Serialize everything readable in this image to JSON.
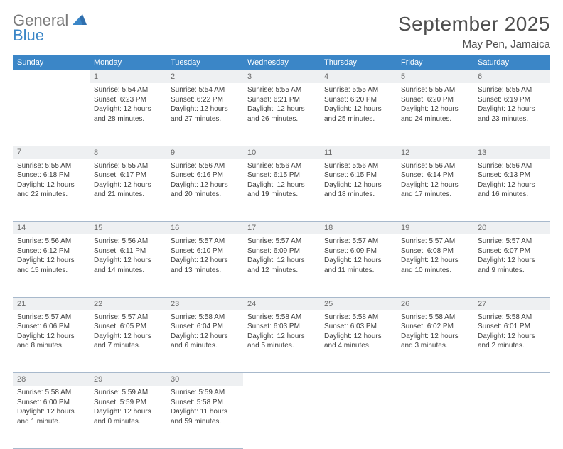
{
  "brand": {
    "line1": "General",
    "line2": "Blue"
  },
  "title": "September 2025",
  "location": "May Pen, Jamaica",
  "colors": {
    "header_bg": "#3b86c7",
    "header_text": "#ffffff",
    "daynum_bg": "#eef0f2",
    "daynum_text": "#6b6b6b",
    "body_text": "#3d3d3d",
    "grid_line": "#a8b9cc",
    "logo_gray": "#7a7a7a",
    "logo_blue": "#3b86c7",
    "page_bg": "#ffffff"
  },
  "typography": {
    "month_title_pt": 28,
    "location_pt": 15,
    "dayheader_pt": 11,
    "daynum_pt": 11,
    "cell_pt": 10
  },
  "day_headers": [
    "Sunday",
    "Monday",
    "Tuesday",
    "Wednesday",
    "Thursday",
    "Friday",
    "Saturday"
  ],
  "weeks": [
    [
      {
        "num": "",
        "sunrise": "",
        "sunset": "",
        "daylight": ""
      },
      {
        "num": "1",
        "sunrise": "Sunrise: 5:54 AM",
        "sunset": "Sunset: 6:23 PM",
        "daylight": "Daylight: 12 hours and 28 minutes."
      },
      {
        "num": "2",
        "sunrise": "Sunrise: 5:54 AM",
        "sunset": "Sunset: 6:22 PM",
        "daylight": "Daylight: 12 hours and 27 minutes."
      },
      {
        "num": "3",
        "sunrise": "Sunrise: 5:55 AM",
        "sunset": "Sunset: 6:21 PM",
        "daylight": "Daylight: 12 hours and 26 minutes."
      },
      {
        "num": "4",
        "sunrise": "Sunrise: 5:55 AM",
        "sunset": "Sunset: 6:20 PM",
        "daylight": "Daylight: 12 hours and 25 minutes."
      },
      {
        "num": "5",
        "sunrise": "Sunrise: 5:55 AM",
        "sunset": "Sunset: 6:20 PM",
        "daylight": "Daylight: 12 hours and 24 minutes."
      },
      {
        "num": "6",
        "sunrise": "Sunrise: 5:55 AM",
        "sunset": "Sunset: 6:19 PM",
        "daylight": "Daylight: 12 hours and 23 minutes."
      }
    ],
    [
      {
        "num": "7",
        "sunrise": "Sunrise: 5:55 AM",
        "sunset": "Sunset: 6:18 PM",
        "daylight": "Daylight: 12 hours and 22 minutes."
      },
      {
        "num": "8",
        "sunrise": "Sunrise: 5:55 AM",
        "sunset": "Sunset: 6:17 PM",
        "daylight": "Daylight: 12 hours and 21 minutes."
      },
      {
        "num": "9",
        "sunrise": "Sunrise: 5:56 AM",
        "sunset": "Sunset: 6:16 PM",
        "daylight": "Daylight: 12 hours and 20 minutes."
      },
      {
        "num": "10",
        "sunrise": "Sunrise: 5:56 AM",
        "sunset": "Sunset: 6:15 PM",
        "daylight": "Daylight: 12 hours and 19 minutes."
      },
      {
        "num": "11",
        "sunrise": "Sunrise: 5:56 AM",
        "sunset": "Sunset: 6:15 PM",
        "daylight": "Daylight: 12 hours and 18 minutes."
      },
      {
        "num": "12",
        "sunrise": "Sunrise: 5:56 AM",
        "sunset": "Sunset: 6:14 PM",
        "daylight": "Daylight: 12 hours and 17 minutes."
      },
      {
        "num": "13",
        "sunrise": "Sunrise: 5:56 AM",
        "sunset": "Sunset: 6:13 PM",
        "daylight": "Daylight: 12 hours and 16 minutes."
      }
    ],
    [
      {
        "num": "14",
        "sunrise": "Sunrise: 5:56 AM",
        "sunset": "Sunset: 6:12 PM",
        "daylight": "Daylight: 12 hours and 15 minutes."
      },
      {
        "num": "15",
        "sunrise": "Sunrise: 5:56 AM",
        "sunset": "Sunset: 6:11 PM",
        "daylight": "Daylight: 12 hours and 14 minutes."
      },
      {
        "num": "16",
        "sunrise": "Sunrise: 5:57 AM",
        "sunset": "Sunset: 6:10 PM",
        "daylight": "Daylight: 12 hours and 13 minutes."
      },
      {
        "num": "17",
        "sunrise": "Sunrise: 5:57 AM",
        "sunset": "Sunset: 6:09 PM",
        "daylight": "Daylight: 12 hours and 12 minutes."
      },
      {
        "num": "18",
        "sunrise": "Sunrise: 5:57 AM",
        "sunset": "Sunset: 6:09 PM",
        "daylight": "Daylight: 12 hours and 11 minutes."
      },
      {
        "num": "19",
        "sunrise": "Sunrise: 5:57 AM",
        "sunset": "Sunset: 6:08 PM",
        "daylight": "Daylight: 12 hours and 10 minutes."
      },
      {
        "num": "20",
        "sunrise": "Sunrise: 5:57 AM",
        "sunset": "Sunset: 6:07 PM",
        "daylight": "Daylight: 12 hours and 9 minutes."
      }
    ],
    [
      {
        "num": "21",
        "sunrise": "Sunrise: 5:57 AM",
        "sunset": "Sunset: 6:06 PM",
        "daylight": "Daylight: 12 hours and 8 minutes."
      },
      {
        "num": "22",
        "sunrise": "Sunrise: 5:57 AM",
        "sunset": "Sunset: 6:05 PM",
        "daylight": "Daylight: 12 hours and 7 minutes."
      },
      {
        "num": "23",
        "sunrise": "Sunrise: 5:58 AM",
        "sunset": "Sunset: 6:04 PM",
        "daylight": "Daylight: 12 hours and 6 minutes."
      },
      {
        "num": "24",
        "sunrise": "Sunrise: 5:58 AM",
        "sunset": "Sunset: 6:03 PM",
        "daylight": "Daylight: 12 hours and 5 minutes."
      },
      {
        "num": "25",
        "sunrise": "Sunrise: 5:58 AM",
        "sunset": "Sunset: 6:03 PM",
        "daylight": "Daylight: 12 hours and 4 minutes."
      },
      {
        "num": "26",
        "sunrise": "Sunrise: 5:58 AM",
        "sunset": "Sunset: 6:02 PM",
        "daylight": "Daylight: 12 hours and 3 minutes."
      },
      {
        "num": "27",
        "sunrise": "Sunrise: 5:58 AM",
        "sunset": "Sunset: 6:01 PM",
        "daylight": "Daylight: 12 hours and 2 minutes."
      }
    ],
    [
      {
        "num": "28",
        "sunrise": "Sunrise: 5:58 AM",
        "sunset": "Sunset: 6:00 PM",
        "daylight": "Daylight: 12 hours and 1 minute."
      },
      {
        "num": "29",
        "sunrise": "Sunrise: 5:59 AM",
        "sunset": "Sunset: 5:59 PM",
        "daylight": "Daylight: 12 hours and 0 minutes."
      },
      {
        "num": "30",
        "sunrise": "Sunrise: 5:59 AM",
        "sunset": "Sunset: 5:58 PM",
        "daylight": "Daylight: 11 hours and 59 minutes."
      },
      {
        "num": "",
        "sunrise": "",
        "sunset": "",
        "daylight": ""
      },
      {
        "num": "",
        "sunrise": "",
        "sunset": "",
        "daylight": ""
      },
      {
        "num": "",
        "sunrise": "",
        "sunset": "",
        "daylight": ""
      },
      {
        "num": "",
        "sunrise": "",
        "sunset": "",
        "daylight": ""
      }
    ]
  ]
}
